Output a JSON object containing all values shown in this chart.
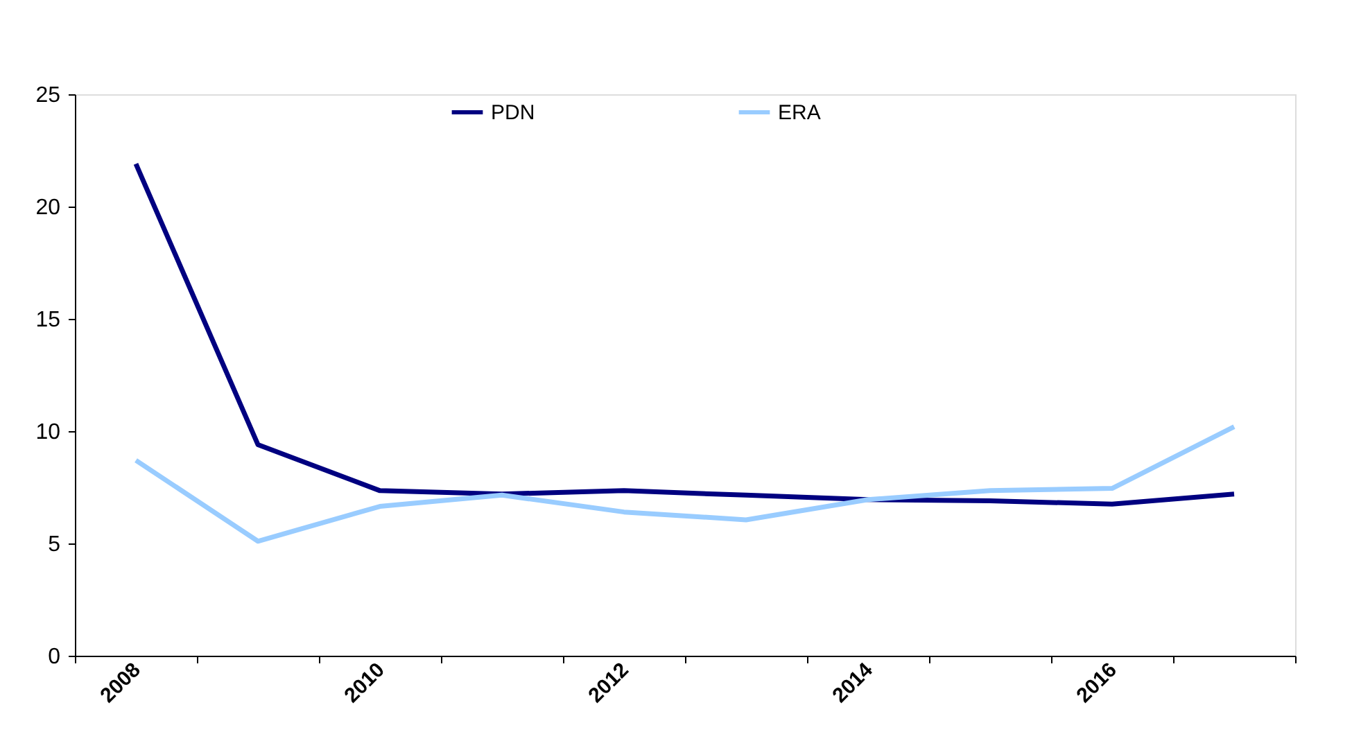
{
  "chart_data": {
    "type": "line",
    "categories": [
      "2008",
      null,
      "2010",
      null,
      "2012",
      null,
      "2014",
      null,
      "2016",
      null
    ],
    "series": [
      {
        "name": "PDN",
        "color": "#000080",
        "values": [
          21.9,
          9.4,
          7.35,
          7.2,
          7.35,
          7.15,
          6.95,
          6.9,
          6.75,
          7.2
        ]
      },
      {
        "name": "ERA",
        "color": "#99ccff",
        "values": [
          8.7,
          5.1,
          6.65,
          7.15,
          6.4,
          6.05,
          6.95,
          7.35,
          7.45,
          10.2
        ]
      }
    ],
    "ylim": [
      0,
      25
    ],
    "yticks": [
      0,
      5,
      10,
      15,
      20,
      25
    ],
    "grid": false,
    "legend": "top",
    "marker": "none",
    "line_style": "solid"
  }
}
